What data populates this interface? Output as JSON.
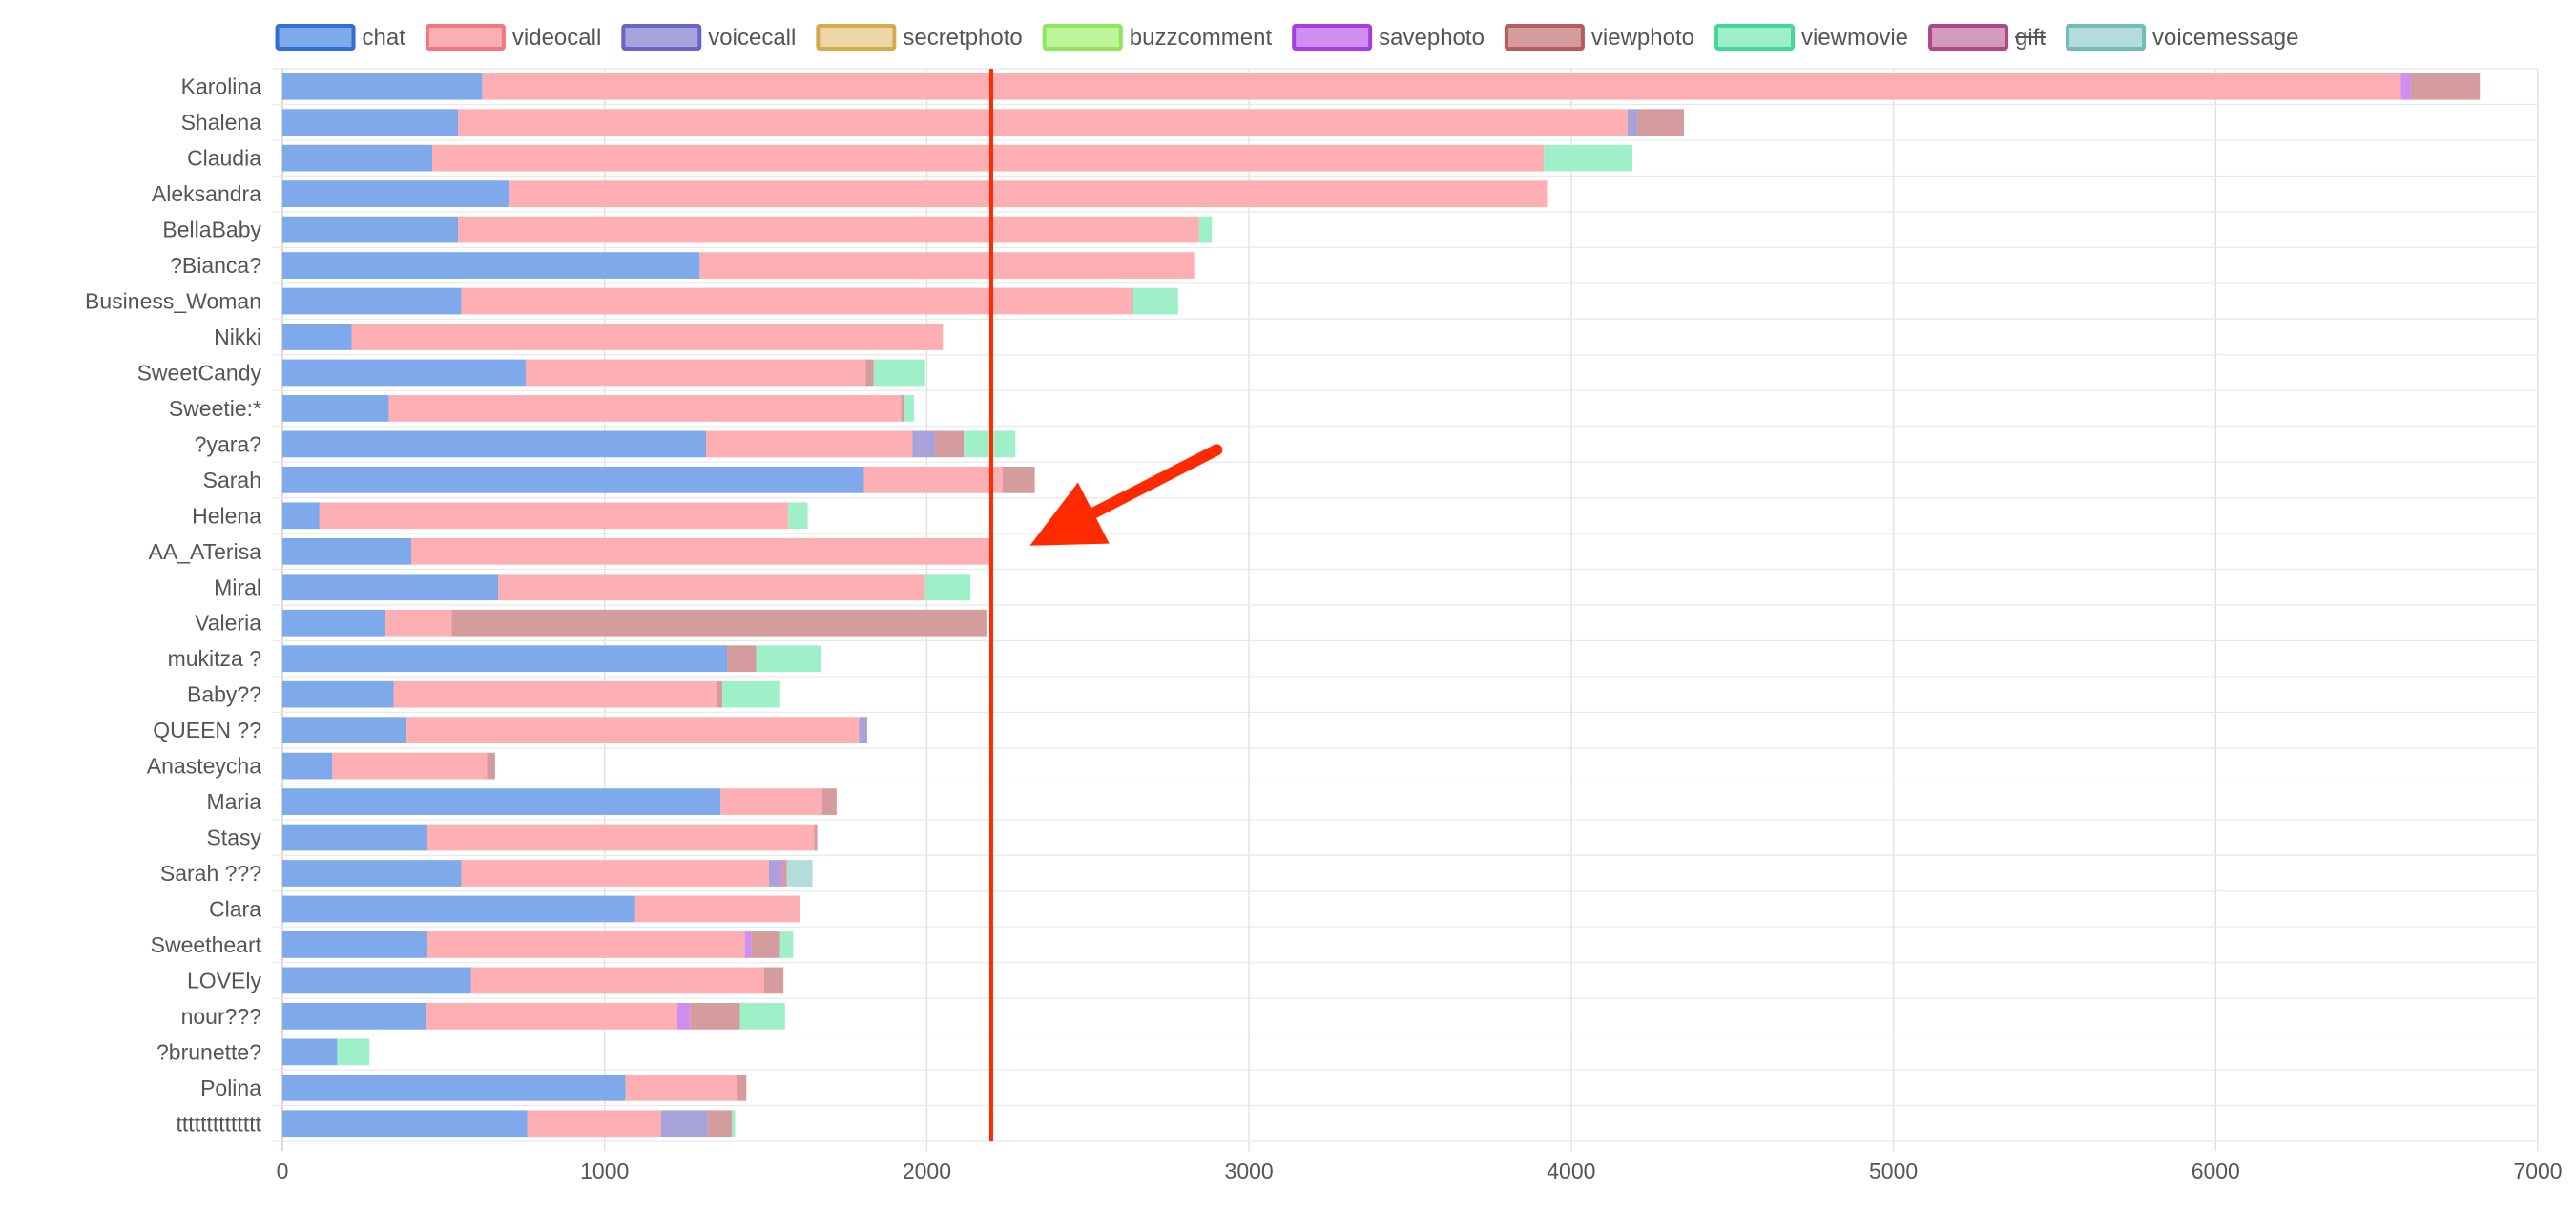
{
  "chart_data": {
    "type": "bar",
    "orientation": "horizontal",
    "stacked": true,
    "legend_position": "top",
    "grid": true,
    "xlim": [
      0,
      7000
    ],
    "x_ticks": [
      "0",
      "1000",
      "2000",
      "3000",
      "4000",
      "5000",
      "6000",
      "7000"
    ],
    "categories": [
      "Karolina",
      "Shalena",
      "Claudia",
      "Aleksandra",
      "BellaBaby",
      "?Bianca?",
      "Business_Woman",
      "Nikki",
      "SweetCandy",
      "Sweetie:*",
      "?yara?",
      "Sarah",
      "Helena",
      "AA_ATerisa",
      "Miral",
      "Valeria",
      "mukitza ?",
      "Baby??",
      "QUEEN ??",
      "Anasteycha",
      "Maria",
      "Stasy",
      "Sarah ???",
      "Clara",
      "Sweetheart",
      "LOVEly",
      "nour???",
      "?brunette?",
      "Polina",
      "tttttttttttttt"
    ],
    "series": [
      {
        "name": "chat",
        "color": "#7ea9ea",
        "border": "#2f6fd6",
        "hidden": false,
        "values": [
          620,
          545,
          465,
          705,
          545,
          1295,
          555,
          215,
          755,
          330,
          1315,
          1805,
          115,
          400,
          670,
          320,
          1380,
          345,
          385,
          155,
          1360,
          450,
          555,
          1095,
          450,
          585,
          445,
          170,
          1065,
          760
        ]
      },
      {
        "name": "videocall",
        "color": "#fdafb3",
        "border": "#f4777f",
        "hidden": false,
        "values": [
          5955,
          3630,
          3450,
          3220,
          2300,
          1535,
          2080,
          1835,
          1055,
          1590,
          640,
          430,
          1455,
          1800,
          1325,
          205,
          0,
          1005,
          1405,
          480,
          315,
          1200,
          955,
          510,
          985,
          910,
          780,
          0,
          345,
          415
        ]
      },
      {
        "name": "voicecall",
        "color": "#a7a2da",
        "border": "#6b62c6",
        "hidden": false,
        "values": [
          0,
          30,
          0,
          0,
          0,
          0,
          0,
          0,
          0,
          0,
          70,
          0,
          0,
          0,
          0,
          0,
          0,
          0,
          25,
          0,
          0,
          0,
          30,
          0,
          0,
          0,
          0,
          0,
          0,
          145
        ]
      },
      {
        "name": "secretphoto",
        "color": "#ecd6a8",
        "border": "#d6a94c",
        "hidden": false,
        "values": [
          0,
          0,
          0,
          0,
          0,
          0,
          0,
          0,
          0,
          0,
          0,
          0,
          0,
          0,
          0,
          0,
          0,
          0,
          0,
          0,
          0,
          0,
          0,
          0,
          0,
          0,
          0,
          0,
          0,
          0
        ]
      },
      {
        "name": "buzzcomment",
        "color": "#bff59a",
        "border": "#8fe65e",
        "hidden": false,
        "values": [
          0,
          0,
          0,
          0,
          0,
          0,
          0,
          0,
          0,
          0,
          0,
          0,
          0,
          0,
          0,
          0,
          0,
          0,
          0,
          0,
          0,
          0,
          0,
          0,
          0,
          0,
          0,
          0,
          0,
          0
        ]
      },
      {
        "name": "savephoto",
        "color": "#cf8ff0",
        "border": "#a63de0",
        "hidden": false,
        "values": [
          30,
          0,
          0,
          0,
          0,
          0,
          0,
          0,
          0,
          0,
          0,
          0,
          0,
          0,
          0,
          0,
          0,
          0,
          0,
          0,
          0,
          0,
          10,
          0,
          20,
          0,
          40,
          0,
          0,
          0
        ]
      },
      {
        "name": "viewphoto",
        "color": "#d59c9e",
        "border": "#b85a5e",
        "hidden": false,
        "values": [
          215,
          145,
          0,
          0,
          0,
          0,
          5,
          0,
          25,
          10,
          90,
          100,
          0,
          0,
          0,
          1660,
          90,
          15,
          0,
          25,
          45,
          10,
          15,
          0,
          90,
          60,
          155,
          0,
          30,
          75
        ]
      },
      {
        "name": "viewmovie",
        "color": "#9ff0c8",
        "border": "#44d895",
        "hidden": false,
        "values": [
          0,
          0,
          275,
          0,
          40,
          0,
          140,
          0,
          160,
          30,
          160,
          0,
          60,
          0,
          140,
          0,
          200,
          180,
          0,
          0,
          0,
          0,
          0,
          0,
          40,
          0,
          140,
          100,
          0,
          10
        ]
      },
      {
        "name": "gift",
        "color": "#d49abb",
        "border": "#b0478a",
        "hidden": true,
        "values": [
          0,
          0,
          0,
          0,
          0,
          0,
          0,
          0,
          0,
          0,
          0,
          0,
          0,
          0,
          0,
          0,
          0,
          0,
          0,
          0,
          0,
          0,
          0,
          0,
          0,
          0,
          0,
          0,
          0,
          0
        ]
      },
      {
        "name": "voicemessage",
        "color": "#b4dcdb",
        "border": "#6fbcba",
        "hidden": false,
        "values": [
          0,
          0,
          0,
          0,
          0,
          0,
          0,
          0,
          0,
          0,
          0,
          0,
          0,
          0,
          0,
          0,
          0,
          0,
          0,
          0,
          0,
          0,
          80,
          0,
          0,
          0,
          0,
          0,
          0,
          0
        ]
      }
    ],
    "annotations": [
      {
        "type": "vertical-line",
        "x": 2200,
        "color": "#ff2a00"
      },
      {
        "type": "arrow",
        "color": "#ff2a00",
        "from": {
          "category": "?yara?",
          "x": 2900
        },
        "to": {
          "category": "AA_ATerisa",
          "x": 2320
        }
      }
    ]
  }
}
